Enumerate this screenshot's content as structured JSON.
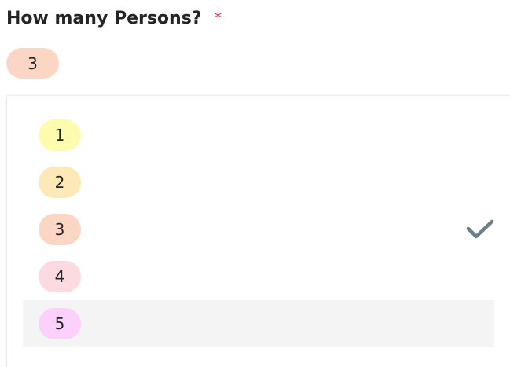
{
  "question": {
    "label": "How many Persons?",
    "required_marker": "*"
  },
  "selected": {
    "value": "3",
    "color": "#fcd6c4"
  },
  "options": [
    {
      "label": "1",
      "color": "#fdfbae"
    },
    {
      "label": "2",
      "color": "#fde9b8"
    },
    {
      "label": "3",
      "color": "#fcd6c4",
      "selected": true,
      "check_icon": "checkmark-icon"
    },
    {
      "label": "4",
      "color": "#fbdbe0"
    },
    {
      "label": "5",
      "color": "#fbd0fb",
      "hovered": true
    }
  ],
  "colors": {
    "required": "#e0313a",
    "check": "#6b7f86",
    "hover": "#f4f4f4"
  }
}
